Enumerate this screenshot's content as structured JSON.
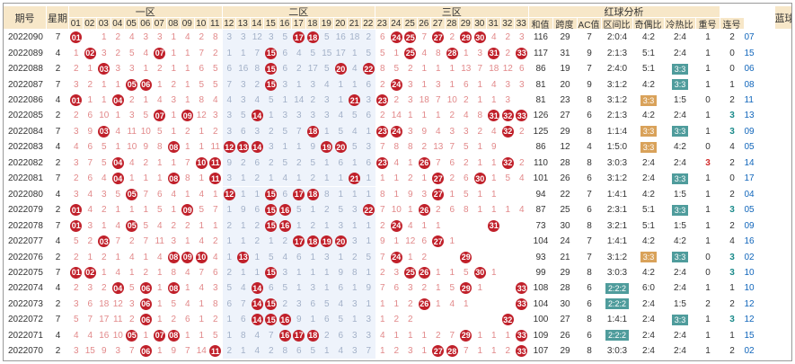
{
  "headers": {
    "issue": "期号",
    "week": "星期",
    "zone1": "一区",
    "zone2": "二区",
    "zone3": "三区",
    "analysis": "红球分析",
    "sum": "和值",
    "span": "跨度",
    "ac": "AC值",
    "zone_ratio": "区间比",
    "odd_even": "奇偶比",
    "hot_cold": "冷热比",
    "repeat": "重号",
    "consecutive": "连号",
    "blue": "蓝球"
  },
  "numbers": [
    "01",
    "02",
    "03",
    "04",
    "05",
    "06",
    "07",
    "08",
    "09",
    "10",
    "11",
    "12",
    "13",
    "14",
    "15",
    "16",
    "17",
    "18",
    "19",
    "20",
    "21",
    "22",
    "23",
    "24",
    "25",
    "26",
    "27",
    "28",
    "29",
    "30",
    "31",
    "32",
    "33"
  ],
  "colors": {
    "header_bg": "#f7e7c8",
    "ball": "#c0202a",
    "gap_bar": "#8c89c8",
    "zone2_band": "#e6eefb",
    "row_band": "#faf6ef",
    "tag_orange": "#d9a25a",
    "tag_teal": "#4f9c9c",
    "blue_text": "#1166bb"
  },
  "rows": [
    {
      "issue": "2022090",
      "week": "7",
      "balls": [
        "01",
        "17",
        "18",
        "24",
        "25",
        "27",
        "29",
        "30"
      ],
      "miss": [
        null,
        "1",
        "2",
        "4",
        "3",
        "3",
        "1",
        "4",
        "2",
        "8",
        "3",
        "3",
        "12",
        "3",
        "5",
        "5",
        "16",
        "18",
        "2",
        "6",
        "7",
        "2",
        "4",
        "2",
        "3",
        "4",
        "5",
        "6",
        "7",
        "2",
        "7",
        "3",
        "1",
        "1",
        "5",
        "1"
      ],
      "sum": "116",
      "span": "29",
      "ac": "7",
      "zone_ratio": "2:0:4",
      "odd_even": "4:2",
      "hot_cold": "2:4",
      "repeat": "1",
      "consecutive": "2",
      "blue": "07"
    },
    {
      "issue": "2022089",
      "week": "4",
      "balls": [
        "02",
        "07",
        "15",
        "25",
        "28",
        "31",
        "33"
      ],
      "miss": [
        "1",
        "3",
        "2",
        "5",
        "4",
        "1",
        "1",
        "7",
        "2",
        "1",
        "1",
        "7",
        "6",
        "4",
        "5",
        "15",
        "17",
        "1",
        "5",
        "5",
        "1",
        "4",
        "8",
        "1",
        "3",
        "2",
        "1",
        "1",
        "13",
        "1",
        "1",
        "1",
        "2",
        "2",
        "12",
        "4",
        "3"
      ],
      "sum": "117",
      "span": "31",
      "ac": "9",
      "zone_ratio": "2:1:3",
      "odd_even": "5:1",
      "hot_cold": "2:4",
      "repeat": "1",
      "consecutive": "0",
      "blue": "15"
    },
    {
      "issue": "2022088",
      "week": "2",
      "balls": [
        "03",
        "15",
        "20",
        "22"
      ],
      "miss": [
        "2",
        "1",
        "3",
        "3",
        "1",
        "2",
        "1",
        "1",
        "6",
        "5",
        "6",
        "16",
        "8",
        "6",
        "2",
        "17",
        "5",
        "4",
        "8",
        "5",
        "2",
        "1",
        "1",
        "1",
        "13",
        "7",
        "18",
        "12",
        "6",
        "3",
        "3",
        "2",
        "3"
      ],
      "sum": "86",
      "span": "19",
      "ac": "7",
      "zone_ratio": "2:4:0",
      "odd_even": "5:1",
      "hot_cold": "3:3",
      "repeat": "1",
      "consecutive": "0",
      "blue": "06"
    },
    {
      "issue": "2022087",
      "week": "7",
      "balls": [
        "05",
        "06",
        "15",
        "24"
      ],
      "miss": [
        "3",
        "2",
        "1",
        "1",
        "1",
        "2",
        "1",
        "5",
        "5",
        "7",
        "3",
        "2",
        "3",
        "1",
        "3",
        "4",
        "1",
        "1",
        "6",
        "2",
        "3",
        "1",
        "3",
        "1",
        "6",
        "1",
        "4",
        "3",
        "3"
      ],
      "sum": "81",
      "span": "20",
      "ac": "9",
      "zone_ratio": "3:1:2",
      "odd_even": "4:2",
      "hot_cold": "3:3",
      "repeat": "1",
      "consecutive": "1",
      "blue": "08"
    },
    {
      "issue": "2022086",
      "week": "4",
      "balls": [
        "01",
        "04",
        "21",
        "23"
      ],
      "miss": [
        "1",
        "1",
        "2",
        "1",
        "4",
        "3",
        "1",
        "8",
        "4",
        "4",
        "3",
        "4",
        "5",
        "1",
        "14",
        "2",
        "3",
        "1",
        "3",
        "2",
        "3",
        "18",
        "7",
        "10",
        "2",
        "1",
        "1",
        "3"
      ],
      "sum": "81",
      "span": "23",
      "ac": "8",
      "zone_ratio": "3:1:2",
      "odd_even": "3:3",
      "hot_cold": "1:5",
      "repeat": "0",
      "consecutive": "2",
      "blue": "11"
    },
    {
      "issue": "2022085",
      "week": "2",
      "balls": [
        "07",
        "09",
        "14",
        "31",
        "32",
        "33"
      ],
      "miss": [
        "2",
        "6",
        "10",
        "1",
        "3",
        "5",
        "1",
        "12",
        "3",
        "3",
        "5",
        "1",
        "3",
        "3",
        "3",
        "3",
        "4",
        "5",
        "6",
        "2",
        "14",
        "1",
        "1",
        "1",
        "2",
        "4",
        "8",
        "1",
        "9",
        "5"
      ],
      "sum": "126",
      "span": "27",
      "ac": "6",
      "zone_ratio": "2:1:3",
      "odd_even": "4:2",
      "hot_cold": "2:4",
      "repeat": "1",
      "consecutive": "3",
      "blue": "13"
    },
    {
      "issue": "2022084",
      "week": "7",
      "balls": [
        "03",
        "18",
        "23",
        "24",
        "32"
      ],
      "miss": [
        "3",
        "9",
        "4",
        "11",
        "10",
        "5",
        "1",
        "2",
        "1",
        "2",
        "3",
        "6",
        "3",
        "2",
        "5",
        "7",
        "1",
        "5",
        "4",
        "1",
        "3",
        "9",
        "4",
        "3",
        "3",
        "2",
        "4",
        "2",
        "5",
        "7"
      ],
      "sum": "125",
      "span": "29",
      "ac": "8",
      "zone_ratio": "1:1:4",
      "odd_even": "3:3",
      "hot_cold": "3:3",
      "repeat": "1",
      "consecutive": "3",
      "blue": "09"
    },
    {
      "issue": "2022083",
      "week": "4",
      "balls": [
        "08",
        "12",
        "13",
        "14",
        "19",
        "20"
      ],
      "miss": [
        "4",
        "6",
        "5",
        "1",
        "10",
        "9",
        "8",
        "1",
        "1",
        "11",
        "3",
        "1",
        "1",
        "9",
        "5",
        "3",
        "7",
        "8",
        "8",
        "2",
        "13",
        "7",
        "5",
        "1",
        "9"
      ],
      "sum": "86",
      "span": "12",
      "ac": "4",
      "zone_ratio": "1:5:0",
      "odd_even": "3:3",
      "hot_cold": "4:2",
      "repeat": "0",
      "consecutive": "4",
      "blue": "05"
    },
    {
      "issue": "2022082",
      "week": "2",
      "balls": [
        "04",
        "10",
        "11",
        "23",
        "26",
        "32"
      ],
      "miss": [
        "3",
        "7",
        "5",
        "4",
        "2",
        "1",
        "1",
        "7",
        "9",
        "2",
        "6",
        "2",
        "5",
        "2",
        "5",
        "1",
        "6",
        "1",
        "6",
        "4",
        "1",
        "7",
        "6",
        "2",
        "1",
        "1",
        "2",
        "4",
        "5",
        "1",
        "6"
      ],
      "sum": "110",
      "span": "28",
      "ac": "8",
      "zone_ratio": "3:0:3",
      "odd_even": "2:4",
      "hot_cold": "2:4",
      "repeat": "3",
      "consecutive": "2",
      "blue": "14"
    },
    {
      "issue": "2022081",
      "week": "7",
      "balls": [
        "04",
        "08",
        "11",
        "21",
        "27",
        "30"
      ],
      "miss": [
        "2",
        "6",
        "4",
        "1",
        "1",
        "1",
        "8",
        "1",
        "3",
        "1",
        "2",
        "1",
        "4",
        "1",
        "2",
        "1",
        "1",
        "1",
        "1",
        "1",
        "2",
        "1",
        "2",
        "6",
        "1",
        "5",
        "4",
        "3",
        "2"
      ],
      "sum": "101",
      "span": "26",
      "ac": "6",
      "zone_ratio": "3:1:2",
      "odd_even": "2:4",
      "hot_cold": "3:3",
      "repeat": "1",
      "consecutive": "0",
      "blue": "17"
    },
    {
      "issue": "2022080",
      "week": "4",
      "balls": [
        "05",
        "12",
        "15",
        "17",
        "18",
        "27"
      ],
      "miss": [
        "3",
        "4",
        "3",
        "5",
        "7",
        "6",
        "4",
        "1",
        "4",
        "1",
        "1",
        "1",
        "6",
        "8",
        "1",
        "1",
        "1",
        "8",
        "1",
        "9",
        "3",
        "1",
        "5",
        "1",
        "1"
      ],
      "sum": "94",
      "span": "22",
      "ac": "7",
      "zone_ratio": "1:4:1",
      "odd_even": "4:2",
      "hot_cold": "1:5",
      "repeat": "1",
      "consecutive": "2",
      "blue": "04"
    },
    {
      "issue": "2022079",
      "week": "2",
      "balls": [
        "01",
        "09",
        "15",
        "16",
        "22",
        "26"
      ],
      "miss": [
        "4",
        "2",
        "1",
        "1",
        "1",
        "5",
        "1",
        "5",
        "7",
        "1",
        "9",
        "6",
        "5",
        "1",
        "2",
        "5",
        "3",
        "7",
        "10",
        "1",
        "2",
        "6",
        "8",
        "1",
        "1",
        "1",
        "4"
      ],
      "sum": "87",
      "span": "25",
      "ac": "6",
      "zone_ratio": "2:3:1",
      "odd_even": "5:1",
      "hot_cold": "3:3",
      "repeat": "1",
      "consecutive": "3",
      "blue": "05"
    },
    {
      "issue": "2022078",
      "week": "7",
      "balls": [
        "01",
        "05",
        "15",
        "16",
        "24",
        "31"
      ],
      "miss": [
        "3",
        "1",
        "4",
        "5",
        "4",
        "2",
        "2",
        "1",
        "1",
        "2",
        "1",
        "2",
        "1",
        "2",
        "1",
        "3",
        "1",
        "1",
        "2",
        "4",
        "1",
        "1"
      ],
      "sum": "73",
      "span": "30",
      "ac": "8",
      "zone_ratio": "3:2:1",
      "odd_even": "5:1",
      "hot_cold": "1:5",
      "repeat": "1",
      "consecutive": "2",
      "blue": "09"
    },
    {
      "issue": "2022077",
      "week": "4",
      "balls": [
        "03",
        "17",
        "18",
        "19",
        "20",
        "27"
      ],
      "miss": [
        "5",
        "2",
        "7",
        "2",
        "7",
        "11",
        "3",
        "1",
        "4",
        "2",
        "1",
        "1",
        "2",
        "1",
        "2",
        "3",
        "1",
        "9",
        "1",
        "12",
        "6",
        "1"
      ],
      "sum": "104",
      "span": "24",
      "ac": "7",
      "zone_ratio": "1:4:1",
      "odd_even": "4:2",
      "hot_cold": "4:2",
      "repeat": "1",
      "consecutive": "4",
      "blue": "16"
    },
    {
      "issue": "2022076",
      "week": "2",
      "balls": [
        "08",
        "09",
        "10",
        "13",
        "24",
        "29"
      ],
      "miss": [
        "2",
        "1",
        "2",
        "1",
        "4",
        "1",
        "4",
        "4",
        "1",
        "1",
        "5",
        "4",
        "6",
        "1",
        "3",
        "1",
        "2",
        "5",
        "7",
        "1",
        "2"
      ],
      "sum": "93",
      "span": "21",
      "ac": "7",
      "zone_ratio": "3:1:2",
      "odd_even": "3:3",
      "hot_cold": "3:3",
      "repeat": "0",
      "consecutive": "3",
      "blue": "02"
    },
    {
      "issue": "2022075",
      "week": "7",
      "balls": [
        "01",
        "02",
        "15",
        "25",
        "26",
        "30"
      ],
      "miss": [
        "1",
        "4",
        "1",
        "2",
        "1",
        "8",
        "4",
        "7",
        "6",
        "2",
        "1",
        "1",
        "3",
        "1",
        "1",
        "1",
        "9",
        "8",
        "1",
        "2",
        "3",
        "1",
        "1",
        "5",
        "1"
      ],
      "sum": "99",
      "span": "29",
      "ac": "8",
      "zone_ratio": "3:0:3",
      "odd_even": "4:2",
      "hot_cold": "2:4",
      "repeat": "0",
      "consecutive": "3",
      "blue": "10"
    },
    {
      "issue": "2022074",
      "week": "4",
      "balls": [
        "04",
        "06",
        "08",
        "14",
        "29",
        "33"
      ],
      "miss": [
        "2",
        "3",
        "2",
        "5",
        "1",
        "1",
        "4",
        "3",
        "5",
        "4",
        "6",
        "5",
        "1",
        "3",
        "1",
        "6",
        "1",
        "9",
        "7",
        "6",
        "3",
        "2",
        "1",
        "5",
        "1"
      ],
      "sum": "108",
      "span": "28",
      "ac": "6",
      "zone_ratio": "2:2:2",
      "odd_even": "6:0",
      "hot_cold": "2:4",
      "repeat": "1",
      "consecutive": "1",
      "blue": "10"
    },
    {
      "issue": "2022073",
      "week": "2",
      "balls": [
        "06",
        "14",
        "15",
        "26",
        "33"
      ],
      "miss": [
        "3",
        "6",
        "18",
        "12",
        "3",
        "1",
        "5",
        "4",
        "1",
        "8",
        "6",
        "7",
        "2",
        "3",
        "6",
        "5",
        "4",
        "3",
        "1",
        "1",
        "1",
        "2",
        "1",
        "4",
        "1"
      ],
      "sum": "104",
      "span": "30",
      "ac": "6",
      "zone_ratio": "2:2:2",
      "odd_even": "2:4",
      "hot_cold": "1:5",
      "repeat": "2",
      "consecutive": "2",
      "blue": "12"
    },
    {
      "issue": "2022072",
      "week": "7",
      "balls": [
        "06",
        "14",
        "15",
        "16",
        "32"
      ],
      "miss": [
        "5",
        "7",
        "17",
        "11",
        "2",
        "1",
        "2",
        "6",
        "1",
        "2",
        "1",
        "6",
        "9",
        "1",
        "6",
        "5",
        "1",
        "3",
        "1",
        "2",
        "2"
      ],
      "sum": "100",
      "span": "27",
      "ac": "8",
      "zone_ratio": "1:4:1",
      "odd_even": "2:4",
      "hot_cold": "3:3",
      "repeat": "1",
      "consecutive": "3",
      "blue": "12"
    },
    {
      "issue": "2022071",
      "week": "4",
      "balls": [
        "05",
        "07",
        "08",
        "16",
        "17",
        "18",
        "29",
        "33"
      ],
      "miss": [
        "4",
        "4",
        "16",
        "10",
        "1",
        "1",
        "1",
        "5",
        "1",
        "8",
        "4",
        "7",
        "2",
        "6",
        "3",
        "3",
        "4",
        "1",
        "1",
        "1",
        "2",
        "7",
        "1",
        "1",
        "1"
      ],
      "sum": "109",
      "span": "26",
      "ac": "6",
      "zone_ratio": "2:2:2",
      "odd_even": "2:4",
      "hot_cold": "2:4",
      "repeat": "1",
      "consecutive": "1",
      "blue": "15"
    },
    {
      "issue": "2022070",
      "week": "2",
      "balls": [
        "06",
        "11",
        "27",
        "28",
        "33"
      ],
      "miss": [
        "3",
        "15",
        "9",
        "3",
        "7",
        "1",
        "9",
        "7",
        "14",
        "2",
        "1",
        "4",
        "2",
        "8",
        "6",
        "5",
        "1",
        "4",
        "3",
        "7",
        "1",
        "2",
        "3",
        "1",
        "7",
        "1",
        "1",
        "2",
        "1",
        "2",
        "1"
      ],
      "sum": "107",
      "span": "29",
      "ac": "8",
      "zone_ratio": "3:0:3",
      "odd_even": "2:4",
      "hot_cold": "2:4",
      "repeat": "1",
      "consecutive": "2",
      "blue": "02"
    }
  ]
}
